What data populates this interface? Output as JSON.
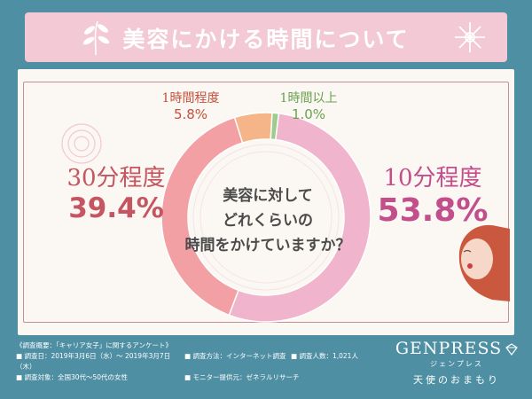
{
  "header": {
    "title": "美容にかける時間について"
  },
  "chart_data": {
    "type": "pie",
    "donut": true,
    "center_text": [
      "美容に対して",
      "どれくらいの",
      "時間をかけていますか？"
    ],
    "slices": [
      {
        "name": "10分程度",
        "value": 53.8,
        "value_text": "53.8%",
        "color": "#f0b4cc"
      },
      {
        "name": "30分程度",
        "value": 39.4,
        "value_text": "39.4%",
        "color": "#f2a0a4"
      },
      {
        "name": "1時間程度",
        "value": 5.8,
        "value_text": "5.8%",
        "color": "#f5b588"
      },
      {
        "name": "1時間以上",
        "value": 1.0,
        "value_text": "1.0%",
        "color": "#9ccc8e"
      }
    ]
  },
  "footer": {
    "heading": "《調査概要：「キャリア女子」に関するアンケート》",
    "period": "■ 調査日：2019年3月6日（水）〜 2019年3月7日（木）",
    "method": "■ 調査方法：インターネット調査",
    "count": "■ 調査人数：1,021人",
    "target": "■ 調査対象：全国30代〜50代の女性",
    "provider": "■ モニター提供元：ゼネラルリサーチ"
  },
  "brand": {
    "name": "GENPRESS",
    "kana": "ジェンプレス",
    "tagline": "天使のおまもり"
  }
}
